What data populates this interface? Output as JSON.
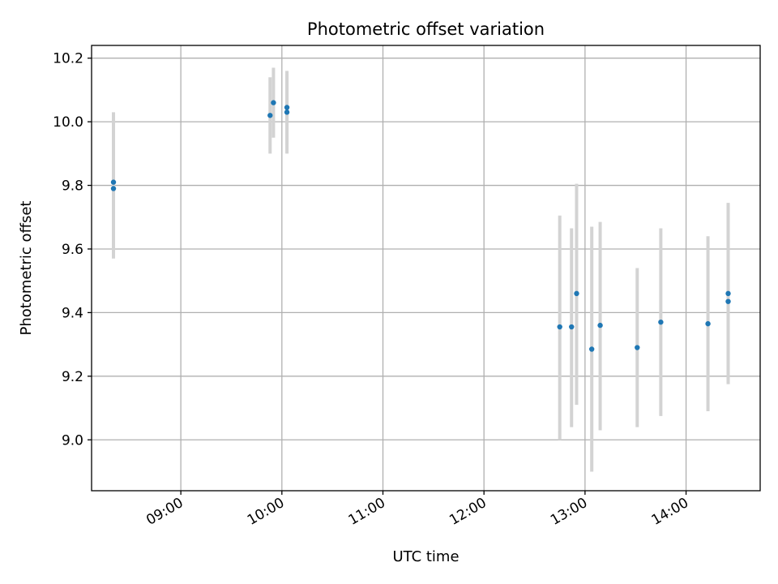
{
  "chart_data": {
    "type": "scatter",
    "title": "Photometric offset variation",
    "xlabel": "UTC time",
    "ylabel": "Photometric offset",
    "xlim": [
      "08:07",
      "14:44"
    ],
    "ylim": [
      8.84,
      10.24
    ],
    "x_ticks": [
      "09:00",
      "10:00",
      "11:00",
      "12:00",
      "13:00",
      "14:00"
    ],
    "y_ticks": [
      9.0,
      9.2,
      9.4,
      9.6,
      9.8,
      10.0,
      10.2
    ],
    "grid": true,
    "colors": {
      "point": "#1f77b4",
      "errorbar": "#d3d3d3",
      "grid": "#b0b0b0"
    },
    "points": [
      {
        "x": "08:20",
        "y": 9.81,
        "err_low": 9.57,
        "err_high": 10.03
      },
      {
        "x": "08:20",
        "y": 9.79,
        "err_low": 9.58,
        "err_high": 10.02
      },
      {
        "x": "09:53",
        "y": 10.02,
        "err_low": 9.9,
        "err_high": 10.14
      },
      {
        "x": "09:55",
        "y": 10.06,
        "err_low": 9.95,
        "err_high": 10.17
      },
      {
        "x": "10:03",
        "y": 10.045,
        "err_low": 9.93,
        "err_high": 10.16
      },
      {
        "x": "10:03",
        "y": 10.03,
        "err_low": 9.9,
        "err_high": 10.15
      },
      {
        "x": "12:45",
        "y": 9.355,
        "err_low": 9.0,
        "err_high": 9.705
      },
      {
        "x": "12:52",
        "y": 9.355,
        "err_low": 9.04,
        "err_high": 9.665
      },
      {
        "x": "12:55",
        "y": 9.46,
        "err_low": 9.11,
        "err_high": 9.805
      },
      {
        "x": "13:04",
        "y": 9.285,
        "err_low": 8.9,
        "err_high": 9.67
      },
      {
        "x": "13:09",
        "y": 9.36,
        "err_low": 9.03,
        "err_high": 9.685
      },
      {
        "x": "13:31",
        "y": 9.29,
        "err_low": 9.04,
        "err_high": 9.54
      },
      {
        "x": "13:45",
        "y": 9.37,
        "err_low": 9.075,
        "err_high": 9.665
      },
      {
        "x": "14:13",
        "y": 9.365,
        "err_low": 9.09,
        "err_high": 9.64
      },
      {
        "x": "14:25",
        "y": 9.46,
        "err_low": 9.175,
        "err_high": 9.745
      },
      {
        "x": "14:25",
        "y": 9.435,
        "err_low": 9.18,
        "err_high": 9.74
      }
    ]
  }
}
